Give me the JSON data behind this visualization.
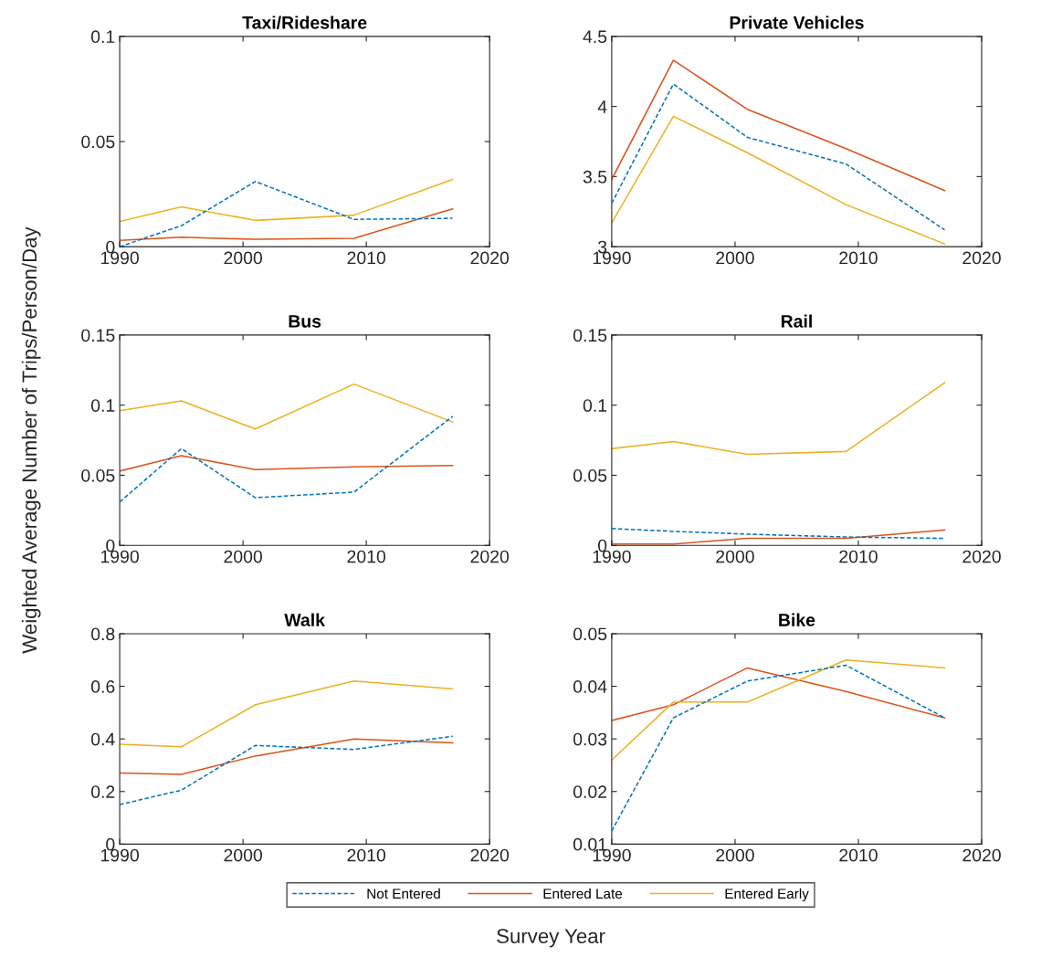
{
  "chart_data": [
    {
      "type": "line",
      "title": "Taxi/Rideshare",
      "ylabel": "Weighted Average Number of Trips/Person/Day",
      "x": [
        1990,
        1995,
        2001,
        2009,
        2017
      ],
      "xlim": [
        1990,
        2020
      ],
      "xticks": [
        1990,
        2000,
        2010,
        2020
      ],
      "ylim": [
        0,
        0.1
      ],
      "yticks": [
        0,
        0.05,
        0.1
      ],
      "grid": false,
      "legend": "bottom",
      "series": [
        {
          "name": "Not Entered",
          "color": "#0072bd",
          "line_style": "dashed",
          "values": [
            0.0,
            0.01,
            0.031,
            0.013,
            0.0135
          ]
        },
        {
          "name": "Entered Late",
          "color": "#d95319",
          "line_style": "solid",
          "values": [
            0.003,
            0.0045,
            0.0035,
            0.004,
            0.018
          ]
        },
        {
          "name": "Entered Early",
          "color": "#edb120",
          "line_style": "solid",
          "values": [
            0.012,
            0.019,
            0.0125,
            0.015,
            0.032
          ]
        }
      ]
    },
    {
      "type": "line",
      "title": "Private Vehicles",
      "x": [
        1990,
        1995,
        2001,
        2009,
        2017
      ],
      "xlim": [
        1990,
        2020
      ],
      "xticks": [
        1990,
        2000,
        2010,
        2020
      ],
      "ylim": [
        3,
        4.5
      ],
      "yticks": [
        3,
        3.5,
        4,
        4.5
      ],
      "grid": false,
      "legend": false,
      "series": [
        {
          "color": "#0072bd",
          "line_style": "dashed",
          "values": [
            3.31,
            4.16,
            3.78,
            3.59,
            3.12
          ]
        },
        {
          "color": "#d95319",
          "line_style": "solid",
          "values": [
            3.48,
            4.33,
            3.98,
            3.7,
            3.4
          ]
        },
        {
          "color": "#edb120",
          "line_style": "solid",
          "values": [
            3.17,
            3.93,
            3.67,
            3.3,
            3.02
          ]
        }
      ]
    },
    {
      "type": "line",
      "title": "Bus",
      "x": [
        1990,
        1995,
        2001,
        2009,
        2017
      ],
      "xlim": [
        1990,
        2020
      ],
      "xticks": [
        1990,
        2000,
        2010,
        2020
      ],
      "ylim": [
        0,
        0.15
      ],
      "yticks": [
        0,
        0.05,
        0.1,
        0.15
      ],
      "grid": false,
      "legend": false,
      "series": [
        {
          "color": "#0072bd",
          "line_style": "dashed",
          "values": [
            0.031,
            0.069,
            0.034,
            0.038,
            0.092
          ]
        },
        {
          "color": "#d95319",
          "line_style": "solid",
          "values": [
            0.053,
            0.064,
            0.054,
            0.056,
            0.057
          ]
        },
        {
          "color": "#edb120",
          "line_style": "solid",
          "values": [
            0.096,
            0.103,
            0.083,
            0.115,
            0.088
          ]
        }
      ]
    },
    {
      "type": "line",
      "title": "Rail",
      "x": [
        1990,
        1995,
        2001,
        2009,
        2017
      ],
      "xlim": [
        1990,
        2020
      ],
      "xticks": [
        1990,
        2000,
        2010,
        2020
      ],
      "ylim": [
        0,
        0.15
      ],
      "yticks": [
        0,
        0.05,
        0.1,
        0.15
      ],
      "grid": false,
      "legend": false,
      "series": [
        {
          "color": "#0072bd",
          "line_style": "dashed",
          "values": [
            0.012,
            0.01,
            0.008,
            0.006,
            0.005
          ]
        },
        {
          "color": "#d95319",
          "line_style": "solid",
          "values": [
            0.001,
            0.001,
            0.005,
            0.005,
            0.011
          ]
        },
        {
          "color": "#edb120",
          "line_style": "solid",
          "values": [
            0.069,
            0.074,
            0.065,
            0.067,
            0.116
          ]
        }
      ]
    },
    {
      "type": "line",
      "title": "Walk",
      "x": [
        1990,
        1995,
        2001,
        2009,
        2017
      ],
      "xlim": [
        1990,
        2020
      ],
      "xticks": [
        1990,
        2000,
        2010,
        2020
      ],
      "ylim": [
        0,
        0.8
      ],
      "yticks": [
        0,
        0.2,
        0.4,
        0.6,
        0.8
      ],
      "grid": false,
      "legend": false,
      "series": [
        {
          "color": "#0072bd",
          "line_style": "dashed",
          "values": [
            0.15,
            0.205,
            0.375,
            0.36,
            0.41
          ]
        },
        {
          "color": "#d95319",
          "line_style": "solid",
          "values": [
            0.27,
            0.265,
            0.335,
            0.4,
            0.385
          ]
        },
        {
          "color": "#edb120",
          "line_style": "solid",
          "values": [
            0.38,
            0.37,
            0.53,
            0.62,
            0.59
          ]
        }
      ]
    },
    {
      "type": "line",
      "title": "Bike",
      "xlabel": "Survey Year",
      "x": [
        1990,
        1995,
        2001,
        2009,
        2017
      ],
      "xlim": [
        1990,
        2020
      ],
      "xticks": [
        1990,
        2000,
        2010,
        2020
      ],
      "ylim": [
        0.01,
        0.05
      ],
      "yticks": [
        0.01,
        0.02,
        0.03,
        0.04,
        0.05
      ],
      "grid": false,
      "legend": false,
      "series": [
        {
          "color": "#0072bd",
          "line_style": "dashed",
          "values": [
            0.0125,
            0.034,
            0.041,
            0.044,
            0.034
          ]
        },
        {
          "color": "#d95319",
          "line_style": "solid",
          "values": [
            0.0335,
            0.0365,
            0.0435,
            0.039,
            0.034
          ]
        },
        {
          "color": "#edb120",
          "line_style": "solid",
          "values": [
            0.026,
            0.037,
            0.037,
            0.045,
            0.0435
          ]
        }
      ]
    }
  ]
}
